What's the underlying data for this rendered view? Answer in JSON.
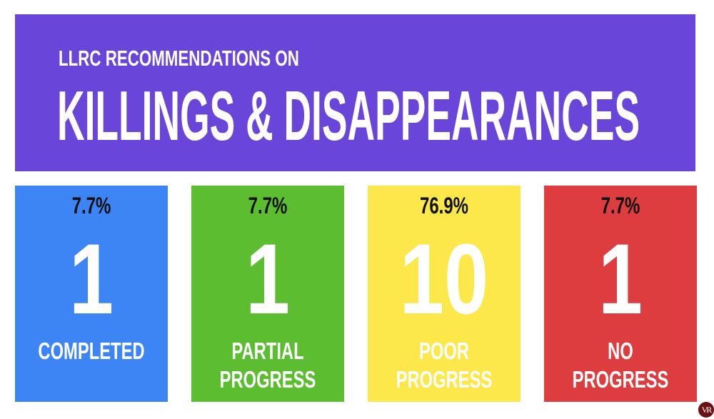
{
  "header": {
    "subtitle": "LLRC RECOMMENDATIONS ON",
    "title": "KILLINGS & DISAPPEARANCES"
  },
  "chart_data": {
    "type": "table",
    "title": "LLRC RECOMMENDATIONS ON KILLINGS & DISAPPEARANCES",
    "categories": [
      "COMPLETED",
      "PARTIAL\nPROGRESS",
      "POOR\nPROGRESS",
      "NO\nPROGRESS"
    ],
    "values": [
      1,
      1,
      10,
      1
    ],
    "percentages": [
      "7.7%",
      "7.7%",
      "76.9%",
      "7.7%"
    ],
    "colors": [
      "#3d85f5",
      "#5bbd2f",
      "#fce84a",
      "#de3d3f"
    ]
  },
  "logo": {
    "text": "VR"
  }
}
